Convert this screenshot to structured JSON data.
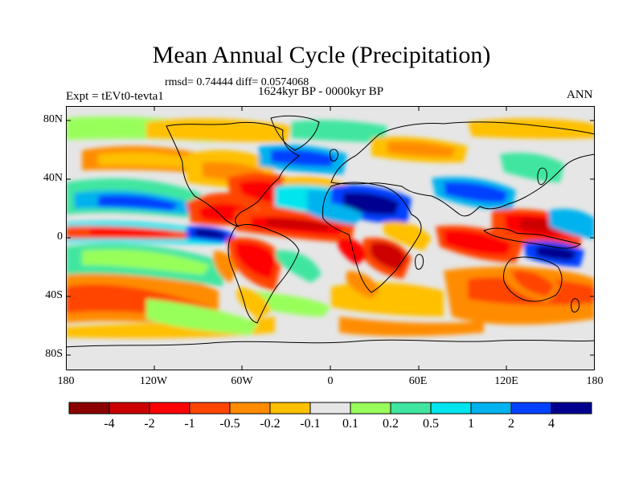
{
  "title": "Mean Annual Cycle (Precipitation)",
  "stats_line": "rmsd= 0.74444 diff= 0.0574068",
  "period_line": "1624kyr BP - 0000kyr BP",
  "experiment_label": "Expt = tEVt0-tevta1",
  "season_label": "ANN",
  "lat_ticks": [
    "80N",
    "40N",
    "0",
    "40S",
    "80S"
  ],
  "lon_ticks": [
    "180",
    "120W",
    "60W",
    "0",
    "60E",
    "120E",
    "180"
  ],
  "colorbar": {
    "labels": [
      "-4",
      "-2",
      "-1",
      "-0.5",
      "-0.2",
      "-0.1",
      "0.1",
      "0.2",
      "0.5",
      "1",
      "2",
      "4"
    ],
    "colors": [
      "#8b0000",
      "#cd0000",
      "#ff0000",
      "#ff4500",
      "#ff8c00",
      "#ffc000",
      "#e6e6e6",
      "#98ff5a",
      "#40e6a0",
      "#00e5ee",
      "#00b2ee",
      "#0040ff",
      "#000090"
    ]
  },
  "chart_data": {
    "type": "filled-contour-map",
    "title": "Mean Annual Cycle (Precipitation)",
    "subtitle": "1624kyr BP - 0000kyr BP",
    "left_label": "Expt = tEVt0-tevta1",
    "right_label": "ANN",
    "rmsd": 0.74444,
    "diff": 0.0574068,
    "lon_range": [
      -180,
      180
    ],
    "lat_range": [
      -90,
      90
    ],
    "contour_levels": [
      -4,
      -2,
      -1,
      -0.5,
      -0.2,
      -0.1,
      0.1,
      0.2,
      0.5,
      1,
      2,
      4
    ]
  }
}
